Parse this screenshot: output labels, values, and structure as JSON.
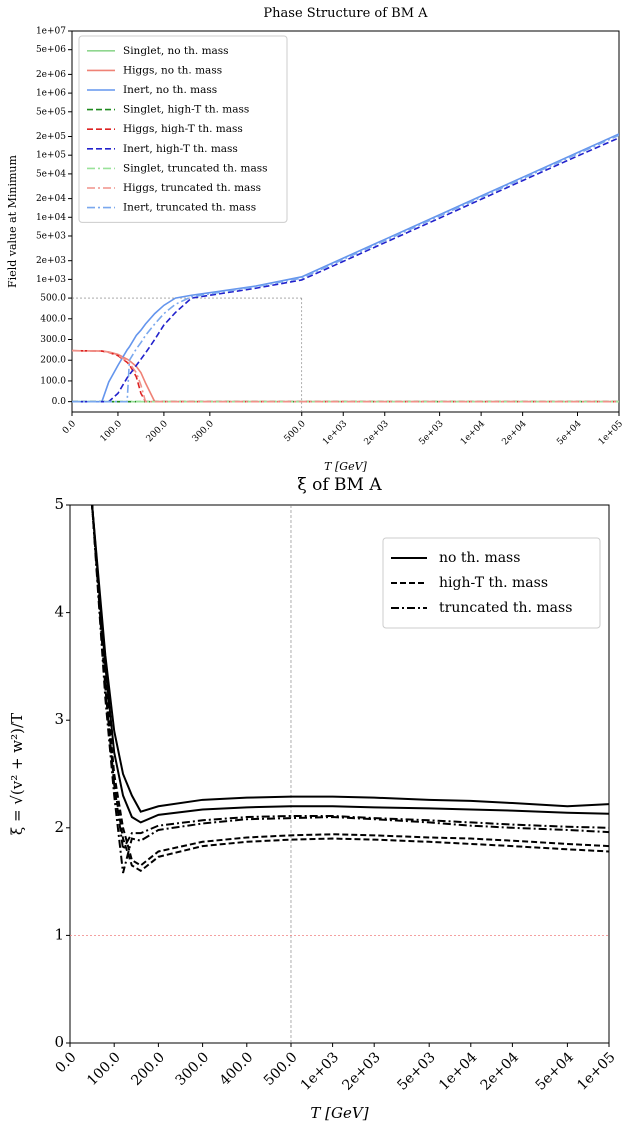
{
  "chart_data": [
    {
      "type": "line",
      "title": "Phase Structure of BM A",
      "xlabel": "T [GeV]",
      "ylabel": "Field value at Minimum",
      "xscale": "linear-then-log",
      "yscale": "linear-then-log",
      "xbreak": 500,
      "ybreak": 500,
      "xlim": [
        0,
        100000
      ],
      "ylim": [
        -50,
        10000000
      ],
      "legend": "upper left",
      "xticks": [
        {
          "value": 0,
          "label": "0.0"
        },
        {
          "value": 100,
          "label": "100.0"
        },
        {
          "value": 200,
          "label": "200.0"
        },
        {
          "value": 300,
          "label": "300.0"
        },
        {
          "value": 500,
          "label": "500.0"
        },
        {
          "value": 1000,
          "label": "1e+03"
        },
        {
          "value": 2000,
          "label": "2e+03"
        },
        {
          "value": 5000,
          "label": "5e+03"
        },
        {
          "value": 10000,
          "label": "1e+04"
        },
        {
          "value": 20000,
          "label": "2e+04"
        },
        {
          "value": 50000,
          "label": "5e+04"
        },
        {
          "value": 100000,
          "label": "1e+05"
        }
      ],
      "yticks": [
        {
          "value": 0,
          "label": "0.0"
        },
        {
          "value": 100,
          "label": "100.0"
        },
        {
          "value": 200,
          "label": "200.0"
        },
        {
          "value": 300,
          "label": "300.0"
        },
        {
          "value": 400,
          "label": "400.0"
        },
        {
          "value": 500,
          "label": "500.0"
        },
        {
          "value": 1000,
          "label": "1e+03"
        },
        {
          "value": 2000,
          "label": "2e+03"
        },
        {
          "value": 5000,
          "label": "5e+03"
        },
        {
          "value": 10000,
          "label": "1e+04"
        },
        {
          "value": 20000,
          "label": "2e+04"
        },
        {
          "value": 50000,
          "label": "5e+04"
        },
        {
          "value": 100000,
          "label": "1e+05"
        },
        {
          "value": 200000,
          "label": "2e+05"
        },
        {
          "value": 500000,
          "label": "5e+05"
        },
        {
          "value": 1000000,
          "label": "1e+06"
        },
        {
          "value": 2000000,
          "label": "2e+06"
        },
        {
          "value": 5000000,
          "label": "5e+06"
        },
        {
          "value": 10000000,
          "label": "1e+07"
        }
      ],
      "x": [
        0,
        50,
        65,
        80,
        100,
        120,
        125,
        140,
        150,
        160,
        180,
        200,
        225,
        260,
        300,
        400,
        500,
        1000,
        2000,
        5000,
        10000,
        20000,
        50000,
        100000
      ],
      "series": [
        {
          "name": "Singlet, no th. mass",
          "color": "#8fd68f",
          "dash": "solid",
          "values": [
            0,
            0,
            0,
            0,
            0,
            0,
            0,
            0,
            0,
            0,
            0,
            0,
            0,
            0,
            0,
            0,
            0,
            0,
            0,
            0,
            0,
            0,
            0,
            0
          ]
        },
        {
          "name": "Higgs, no th. mass",
          "color": "#ef8276",
          "dash": "solid",
          "values": [
            246,
            245,
            244,
            240,
            228,
            205,
            198,
            170,
            140,
            90,
            0,
            0,
            0,
            0,
            0,
            0,
            0,
            0,
            0,
            0,
            0,
            0,
            0,
            0
          ]
        },
        {
          "name": "Inert, no th. mass",
          "color": "#6495ed",
          "dash": "solid",
          "values": [
            0,
            0,
            0,
            95,
            175,
            250,
            265,
            320,
            345,
            375,
            425,
            465,
            500,
            555,
            610,
            780,
            1100,
            2200,
            4400,
            11000,
            22000,
            44000,
            110000,
            220000
          ]
        },
        {
          "name": "Singlet, high-T th. mass",
          "color": "#1f8a1f",
          "dash": "dashed",
          "values": [
            0,
            0,
            0,
            0,
            0,
            0,
            0,
            0,
            0,
            0,
            0,
            0,
            0,
            0,
            0,
            0,
            0,
            0,
            0,
            0,
            0,
            0,
            0,
            0
          ]
        },
        {
          "name": "Higgs, high-T th. mass",
          "color": "#dd2222",
          "dash": "dashed",
          "values": [
            246,
            245,
            244,
            238,
            222,
            190,
            178,
            120,
            40,
            0,
            0,
            0,
            0,
            0,
            0,
            0,
            0,
            0,
            0,
            0,
            0,
            0,
            0,
            0
          ]
        },
        {
          "name": "Inert, high-T th. mass",
          "color": "#2222cc",
          "dash": "dashed",
          "values": [
            0,
            0,
            0,
            0,
            40,
            115,
            130,
            175,
            205,
            235,
            300,
            370,
            430,
            500,
            555,
            720,
            980,
            1950,
            3900,
            9700,
            19500,
            39000,
            97000,
            190000
          ]
        },
        {
          "name": "Singlet, truncated th. mass",
          "color": "#9ae29a",
          "dash": "dashdot",
          "values": [
            0,
            0,
            0,
            0,
            0,
            0,
            0,
            0,
            0,
            0,
            0,
            0,
            0,
            0,
            0,
            0,
            0,
            0,
            0,
            0,
            0,
            0,
            0,
            0
          ]
        },
        {
          "name": "Higgs, truncated th. mass",
          "color": "#f0928a",
          "dash": "dashdot",
          "values": [
            246,
            245,
            244,
            239,
            225,
            195,
            185,
            140,
            80,
            0,
            0,
            0,
            0,
            0,
            0,
            0,
            0,
            0,
            0,
            0,
            0,
            0,
            0,
            0
          ]
        },
        {
          "name": "Inert, truncated th. mass",
          "color": "#7aa8ee",
          "dash": "dashdot",
          "values": [
            0,
            0,
            0,
            0,
            0,
            0,
            200,
            255,
            285,
            320,
            375,
            425,
            470,
            525,
            585,
            760,
            1050,
            2100,
            4200,
            10500,
            21000,
            42000,
            105000,
            210000
          ]
        }
      ]
    },
    {
      "type": "line",
      "title": "ξ of BM A",
      "xlabel": "T [GeV]",
      "ylabel": "ξ = √(v² + w²)/T",
      "xscale": "linear-then-log",
      "xbreak": 500,
      "hline": 1,
      "color": "#000000",
      "xlim": [
        0,
        100000
      ],
      "ylim": [
        0,
        5
      ],
      "legend": "upper right",
      "xticks": [
        {
          "value": 0,
          "label": "0.0"
        },
        {
          "value": 100,
          "label": "100.0"
        },
        {
          "value": 200,
          "label": "200.0"
        },
        {
          "value": 300,
          "label": "300.0"
        },
        {
          "value": 400,
          "label": "400.0"
        },
        {
          "value": 500,
          "label": "500.0"
        },
        {
          "value": 1000,
          "label": "1e+03"
        },
        {
          "value": 2000,
          "label": "2e+03"
        },
        {
          "value": 5000,
          "label": "5e+03"
        },
        {
          "value": 10000,
          "label": "1e+04"
        },
        {
          "value": 20000,
          "label": "2e+04"
        },
        {
          "value": 50000,
          "label": "5e+04"
        },
        {
          "value": 100000,
          "label": "1e+05"
        }
      ],
      "yticks": [
        0,
        1,
        2,
        3,
        4,
        5
      ],
      "x": [
        50,
        80,
        100,
        120,
        140,
        160,
        200,
        300,
        400,
        500,
        1000,
        2000,
        5000,
        10000,
        20000,
        50000,
        100000
      ],
      "series": [
        {
          "name": "no th. mass",
          "dash": "solid",
          "lines": [
            [
              5,
              3.6,
              2.9,
              2.5,
              2.3,
              2.15,
              2.2,
              2.26,
              2.28,
              2.29,
              2.29,
              2.28,
              2.26,
              2.25,
              2.23,
              2.2,
              2.22
            ],
            [
              5,
              3.5,
              2.7,
              2.3,
              2.1,
              2.05,
              2.12,
              2.17,
              2.19,
              2.2,
              2.2,
              2.19,
              2.18,
              2.17,
              2.16,
              2.14,
              2.13
            ]
          ]
        },
        {
          "name": "high-T th. mass",
          "dash": "dashed",
          "lines": [
            [
              5,
              3.4,
              2.5,
              2.0,
              1.7,
              1.65,
              1.78,
              1.87,
              1.91,
              1.93,
              1.94,
              1.93,
              1.91,
              1.9,
              1.88,
              1.85,
              1.83
            ],
            [
              5,
              3.3,
              2.4,
              1.9,
              1.65,
              1.6,
              1.73,
              1.83,
              1.87,
              1.89,
              1.9,
              1.89,
              1.87,
              1.85,
              1.83,
              1.8,
              1.78
            ]
          ]
        },
        {
          "name": "truncated th. mass",
          "dash": "dashdot",
          "lines": [
            [
              5,
              3.3,
              2.4,
              1.8,
              1.95,
              1.95,
              2.02,
              2.07,
              2.1,
              2.11,
              2.11,
              2.09,
              2.07,
              2.05,
              2.03,
              2.01,
              2.0
            ],
            [
              5,
              3.2,
              2.3,
              1.58,
              1.9,
              1.88,
              1.98,
              2.04,
              2.08,
              2.09,
              2.1,
              2.08,
              2.05,
              2.02,
              2.0,
              1.98,
              1.96
            ]
          ]
        }
      ]
    }
  ]
}
